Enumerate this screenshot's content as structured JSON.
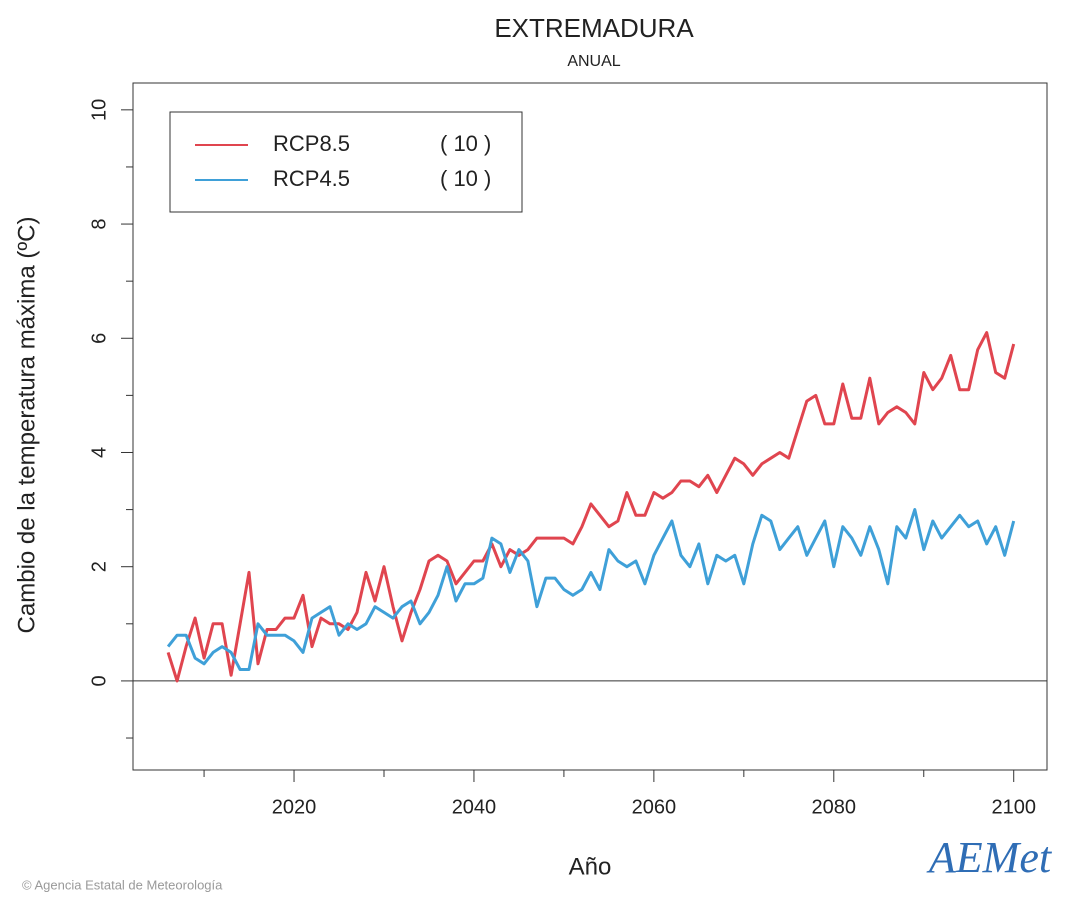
{
  "chart_data": {
    "type": "line",
    "title": "EXTREMADURA",
    "subtitle": "ANUAL",
    "x_label": "Año",
    "y_label": "Cambio de la temperatura máxima (ºC)",
    "x": [
      2006,
      2007,
      2008,
      2009,
      2010,
      2011,
      2012,
      2013,
      2014,
      2015,
      2016,
      2017,
      2018,
      2019,
      2020,
      2021,
      2022,
      2023,
      2024,
      2025,
      2026,
      2027,
      2028,
      2029,
      2030,
      2031,
      2032,
      2033,
      2034,
      2035,
      2036,
      2037,
      2038,
      2039,
      2040,
      2041,
      2042,
      2043,
      2044,
      2045,
      2046,
      2047,
      2048,
      2049,
      2050,
      2051,
      2052,
      2053,
      2054,
      2055,
      2056,
      2057,
      2058,
      2059,
      2060,
      2061,
      2062,
      2063,
      2064,
      2065,
      2066,
      2067,
      2068,
      2069,
      2070,
      2071,
      2072,
      2073,
      2074,
      2075,
      2076,
      2077,
      2078,
      2079,
      2080,
      2081,
      2082,
      2083,
      2084,
      2085,
      2086,
      2087,
      2088,
      2089,
      2090,
      2091,
      2092,
      2093,
      2094,
      2095,
      2096,
      2097,
      2098,
      2099,
      2100
    ],
    "series": [
      {
        "name": "RCP8.5",
        "count_label": "( 10 )",
        "color": "#e0454f",
        "values": [
          0.5,
          0.0,
          0.6,
          1.1,
          0.4,
          1.0,
          1.0,
          0.1,
          1.0,
          1.9,
          0.3,
          0.9,
          0.9,
          1.1,
          1.1,
          1.5,
          0.6,
          1.1,
          1.0,
          1.0,
          0.9,
          1.2,
          1.9,
          1.4,
          2.0,
          1.3,
          0.7,
          1.2,
          1.6,
          2.1,
          2.2,
          2.1,
          1.7,
          1.9,
          2.1,
          2.1,
          2.4,
          2.0,
          2.3,
          2.2,
          2.3,
          2.5,
          2.5,
          2.5,
          2.5,
          2.4,
          2.7,
          3.1,
          2.9,
          2.7,
          2.8,
          3.3,
          2.9,
          2.9,
          3.3,
          3.2,
          3.3,
          3.5,
          3.5,
          3.4,
          3.6,
          3.3,
          3.6,
          3.9,
          3.8,
          3.6,
          3.8,
          3.9,
          4.0,
          3.9,
          4.4,
          4.9,
          5.0,
          4.5,
          4.5,
          5.2,
          4.6,
          4.6,
          5.3,
          4.5,
          4.7,
          4.8,
          4.7,
          4.5,
          5.4,
          5.1,
          5.3,
          5.7,
          5.1,
          5.1,
          5.8,
          6.1,
          5.4,
          5.3,
          5.9
        ]
      },
      {
        "name": "RCP4.5",
        "count_label": "( 10 )",
        "color": "#3fa0d8",
        "values": [
          0.6,
          0.8,
          0.8,
          0.4,
          0.3,
          0.5,
          0.6,
          0.5,
          0.2,
          0.2,
          1.0,
          0.8,
          0.8,
          0.8,
          0.7,
          0.5,
          1.1,
          1.2,
          1.3,
          0.8,
          1.0,
          0.9,
          1.0,
          1.3,
          1.2,
          1.1,
          1.3,
          1.4,
          1.0,
          1.2,
          1.5,
          2.0,
          1.4,
          1.7,
          1.7,
          1.8,
          2.5,
          2.4,
          1.9,
          2.3,
          2.1,
          1.3,
          1.8,
          1.8,
          1.6,
          1.5,
          1.6,
          1.9,
          1.6,
          2.3,
          2.1,
          2.0,
          2.1,
          1.7,
          2.2,
          2.5,
          2.8,
          2.2,
          2.0,
          2.4,
          1.7,
          2.2,
          2.1,
          2.2,
          1.7,
          2.4,
          2.9,
          2.8,
          2.3,
          2.5,
          2.7,
          2.2,
          2.5,
          2.8,
          2.0,
          2.7,
          2.5,
          2.2,
          2.7,
          2.3,
          1.7,
          2.7,
          2.5,
          3.0,
          2.3,
          2.8,
          2.5,
          2.7,
          2.9,
          2.7,
          2.8,
          2.4,
          2.7,
          2.2,
          2.8
        ]
      }
    ],
    "xlim": [
      2002.1,
      2103.7
    ],
    "xticks": [
      2020,
      2040,
      2060,
      2080,
      2100
    ],
    "xminorticks": [
      2010,
      2030,
      2050,
      2070,
      2090
    ],
    "ylim": [
      -1.56,
      10.47
    ],
    "yticks": [
      0,
      2,
      4,
      6,
      8,
      10
    ],
    "yminorticks": [
      -1,
      1,
      3,
      5,
      7,
      9
    ],
    "hline": 0,
    "legend": "upper left"
  },
  "footer": "© Agencia Estatal de Meteorología",
  "logo": "AEMet"
}
